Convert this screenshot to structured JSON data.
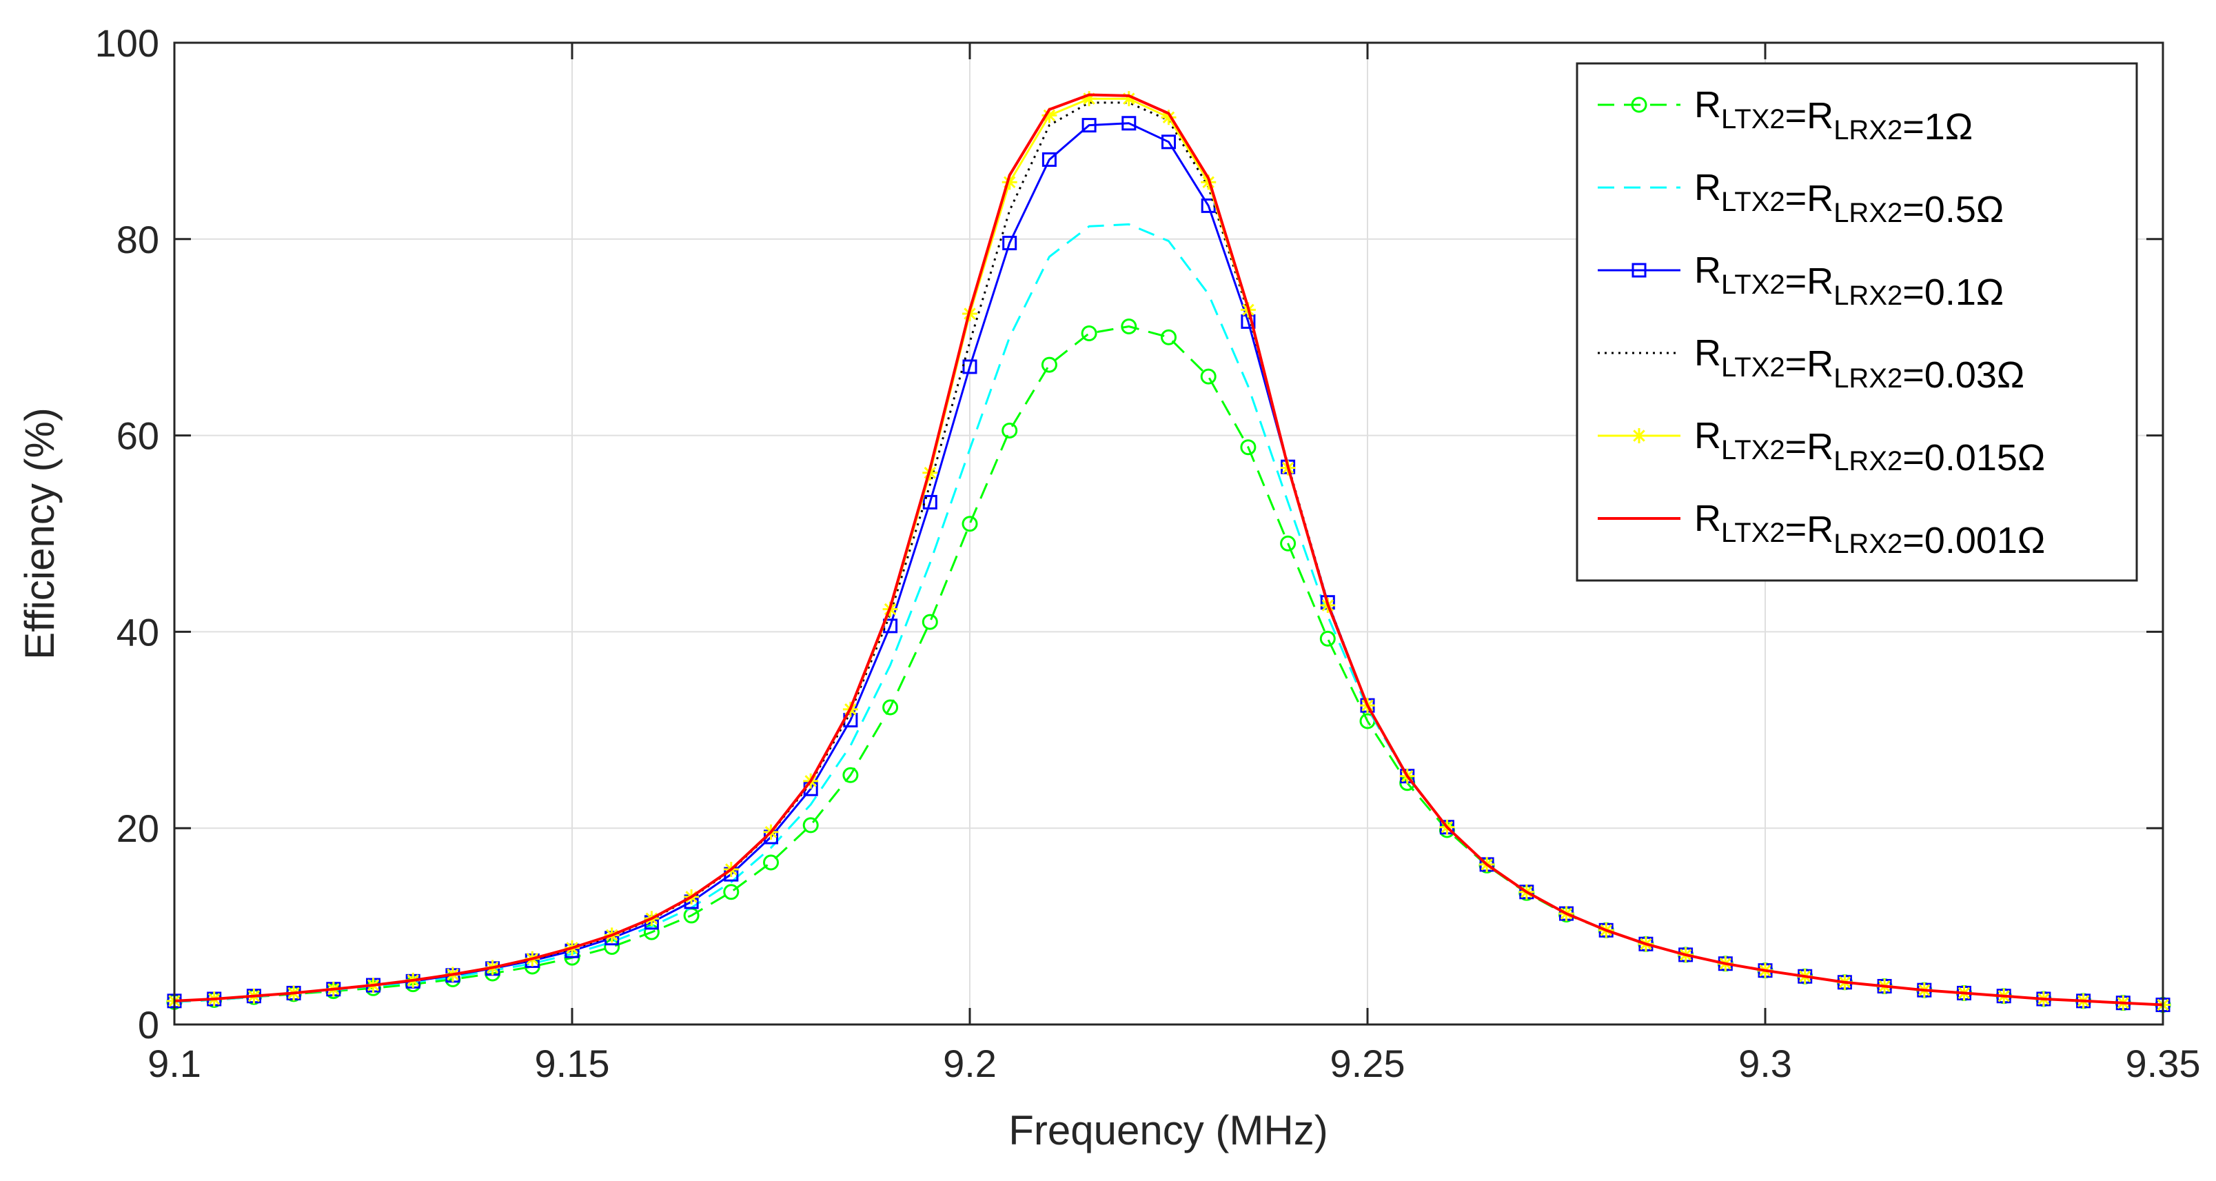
{
  "chart_data": {
    "type": "line",
    "title": "",
    "xlabel": "Frequency (MHz)",
    "ylabel": "Efficiency (%)",
    "xlim": [
      9.1,
      9.35
    ],
    "ylim": [
      0,
      100
    ],
    "grid": true,
    "legend_position": "top-right",
    "x_ticks": [
      9.1,
      9.15,
      9.2,
      9.25,
      9.3,
      9.35
    ],
    "x_tick_labels": [
      "9.1",
      "9.15",
      "9.2",
      "9.25",
      "9.3",
      "9.35"
    ],
    "y_ticks": [
      0,
      20,
      40,
      60,
      80,
      100
    ],
    "y_tick_labels": [
      "0",
      "20",
      "40",
      "60",
      "80",
      "100"
    ],
    "x": [
      9.1,
      9.105,
      9.11,
      9.115,
      9.12,
      9.125,
      9.13,
      9.135,
      9.14,
      9.145,
      9.15,
      9.155,
      9.16,
      9.165,
      9.17,
      9.175,
      9.18,
      9.185,
      9.19,
      9.195,
      9.2,
      9.205,
      9.21,
      9.215,
      9.22,
      9.225,
      9.23,
      9.235,
      9.24,
      9.245,
      9.25,
      9.255,
      9.26,
      9.265,
      9.27,
      9.275,
      9.28,
      9.285,
      9.29,
      9.295,
      9.3,
      9.305,
      9.31,
      9.315,
      9.32,
      9.325,
      9.33,
      9.335,
      9.34,
      9.345,
      9.35
    ],
    "series": [
      {
        "name": "R_LTX2=R_LRX2=1Ω",
        "label_main": "R",
        "sub1": "LTX2",
        "mid": "=R",
        "sub2": "LRX2",
        "value": "=1Ω",
        "color": "#00ff00",
        "dash": "24,14",
        "marker": "circle",
        "width": 3,
        "values": [
          2.3,
          2.5,
          2.8,
          3.1,
          3.4,
          3.7,
          4.1,
          4.6,
          5.2,
          5.9,
          6.8,
          7.9,
          9.4,
          11.1,
          13.5,
          16.5,
          20.3,
          25.4,
          32.3,
          41.0,
          51.0,
          60.5,
          67.2,
          70.4,
          71.1,
          70.0,
          66.0,
          58.8,
          49.0,
          39.3,
          30.9,
          24.6,
          19.8,
          16.2,
          13.4,
          11.2,
          9.6,
          8.2,
          7.1,
          6.2,
          5.5,
          4.9,
          4.3,
          3.9,
          3.5,
          3.2,
          2.9,
          2.6,
          2.4,
          2.2,
          2.0
        ]
      },
      {
        "name": "R_LTX2=R_LRX2=0.5Ω",
        "label_main": "R",
        "sub1": "LTX2",
        "mid": "=R",
        "sub2": "LRX2",
        "value": "=0.5Ω",
        "color": "#00ffff",
        "dash": "24,14",
        "marker": "none",
        "width": 3,
        "values": [
          2.3,
          2.5,
          2.8,
          3.2,
          3.5,
          3.9,
          4.3,
          4.8,
          5.5,
          6.2,
          7.2,
          8.4,
          10.0,
          11.9,
          14.5,
          18.0,
          22.4,
          28.4,
          36.6,
          47.0,
          58.6,
          70.0,
          78.2,
          81.3,
          81.5,
          79.8,
          74.4,
          65.0,
          53.2,
          41.6,
          32.2,
          25.2,
          20.1,
          16.3,
          13.5,
          11.3,
          9.6,
          8.2,
          7.1,
          6.2,
          5.5,
          4.9,
          4.3,
          3.9,
          3.5,
          3.2,
          2.9,
          2.6,
          2.4,
          2.2,
          2.0
        ]
      },
      {
        "name": "R_LTX2=R_LRX2=0.1Ω",
        "label_main": "R",
        "sub1": "LTX2",
        "mid": "=R",
        "sub2": "LRX2",
        "value": "=0.1Ω",
        "color": "#0000ff",
        "dash": "",
        "marker": "square",
        "width": 3,
        "values": [
          2.4,
          2.6,
          2.9,
          3.2,
          3.6,
          4.0,
          4.4,
          5.0,
          5.7,
          6.5,
          7.5,
          8.8,
          10.4,
          12.5,
          15.3,
          19.1,
          24.0,
          31.0,
          40.6,
          53.2,
          67.0,
          79.6,
          88.1,
          91.6,
          91.8,
          89.9,
          83.4,
          71.6,
          56.8,
          43.0,
          32.5,
          25.3,
          20.1,
          16.3,
          13.5,
          11.3,
          9.6,
          8.2,
          7.1,
          6.2,
          5.5,
          4.9,
          4.3,
          3.9,
          3.5,
          3.2,
          2.9,
          2.6,
          2.4,
          2.2,
          2.0
        ]
      },
      {
        "name": "R_LTX2=R_LRX2=0.03Ω",
        "label_main": "R",
        "sub1": "LTX2",
        "mid": "=R",
        "sub2": "LRX2",
        "value": "=0.03Ω",
        "color": "#000000",
        "dash": "3,7",
        "marker": "none",
        "width": 3,
        "values": [
          2.4,
          2.6,
          2.9,
          3.2,
          3.6,
          4.0,
          4.5,
          5.1,
          5.8,
          6.6,
          7.7,
          9.0,
          10.7,
          12.9,
          15.7,
          19.5,
          24.6,
          31.8,
          41.8,
          55.0,
          69.5,
          82.9,
          91.6,
          93.9,
          93.9,
          92.1,
          85.3,
          72.5,
          57.0,
          43.0,
          32.5,
          25.3,
          20.1,
          16.3,
          13.5,
          11.3,
          9.6,
          8.2,
          7.1,
          6.2,
          5.5,
          4.9,
          4.3,
          3.9,
          3.5,
          3.2,
          2.9,
          2.6,
          2.4,
          2.2,
          2.0
        ]
      },
      {
        "name": "R_LTX2=R_LRX2=0.015Ω",
        "label_main": "R",
        "sub1": "LTX2",
        "mid": "=R",
        "sub2": "LRX2",
        "value": "=0.015Ω",
        "color": "#ffff00",
        "dash": "",
        "marker": "star",
        "width": 3,
        "values": [
          2.4,
          2.6,
          2.9,
          3.2,
          3.6,
          4.0,
          4.5,
          5.1,
          5.8,
          6.7,
          7.8,
          9.1,
          10.8,
          13.0,
          15.8,
          19.6,
          24.8,
          32.1,
          42.3,
          56.2,
          72.4,
          85.8,
          92.6,
          94.3,
          94.3,
          92.4,
          85.8,
          72.8,
          56.7,
          42.7,
          32.5,
          25.3,
          20.1,
          16.3,
          13.5,
          11.3,
          9.6,
          8.2,
          7.1,
          6.2,
          5.5,
          4.9,
          4.3,
          3.9,
          3.5,
          3.2,
          2.9,
          2.6,
          2.4,
          2.2,
          2.0
        ]
      },
      {
        "name": "R_LTX2=R_LRX2=0.001Ω",
        "label_main": "R",
        "sub1": "LTX2",
        "mid": "=R",
        "sub2": "LRX2",
        "value": "=0.001Ω",
        "color": "#ff0000",
        "dash": "",
        "marker": "none",
        "width": 4,
        "values": [
          2.4,
          2.6,
          2.9,
          3.2,
          3.6,
          4.0,
          4.5,
          5.1,
          5.8,
          6.7,
          7.8,
          9.1,
          10.8,
          13.0,
          15.8,
          19.6,
          24.8,
          32.2,
          42.5,
          56.6,
          72.8,
          86.5,
          93.2,
          94.7,
          94.6,
          92.8,
          86.2,
          73.0,
          56.8,
          42.8,
          32.5,
          25.3,
          20.1,
          16.3,
          13.5,
          11.3,
          9.6,
          8.2,
          7.1,
          6.2,
          5.5,
          4.9,
          4.3,
          3.9,
          3.5,
          3.2,
          2.9,
          2.6,
          2.4,
          2.2,
          2.0
        ]
      }
    ]
  }
}
